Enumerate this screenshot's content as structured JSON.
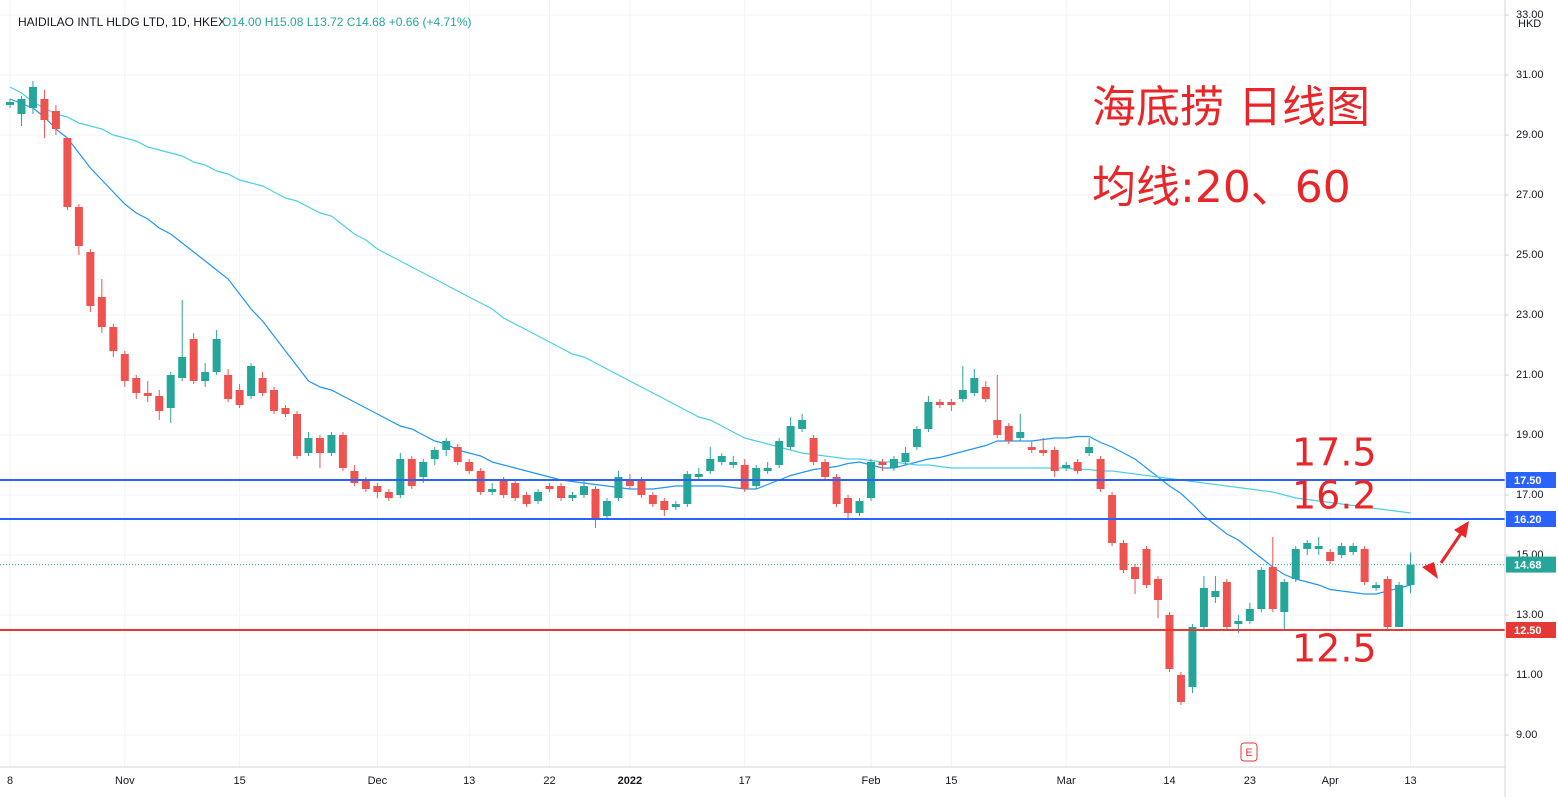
{
  "chart_data": {
    "type": "candlestick",
    "header": {
      "title": "HAIDILAO INTL HLDG LTD, 1D, HKEX",
      "ohlc": "O14.00 H15.08 L13.72 C14.68 +0.66 (+4.71%)"
    },
    "currency": "HKD",
    "annotations": {
      "title": "海底捞 日线图",
      "subtitle": "均线:20、60",
      "levels": [
        "17.5",
        "16.2",
        "12.5"
      ]
    },
    "earnings_marker": "E",
    "up_color": "#26a69a",
    "down_color": "#ef5350",
    "categories": [
      "8",
      null,
      null,
      null,
      null,
      null,
      null,
      null,
      null,
      null,
      "Nov",
      null,
      null,
      null,
      null,
      null,
      null,
      null,
      null,
      null,
      "15",
      null,
      null,
      null,
      null,
      null,
      null,
      null,
      null,
      null,
      null,
      null,
      "Dec",
      null,
      null,
      null,
      null,
      null,
      null,
      null,
      "13",
      null,
      null,
      null,
      null,
      null,
      null,
      "22",
      null,
      null,
      null,
      null,
      null,
      null,
      "2022",
      null,
      null,
      null,
      null,
      null,
      null,
      null,
      null,
      null,
      "17",
      null,
      null,
      null,
      null,
      null,
      null,
      null,
      null,
      null,
      null,
      "Feb",
      null,
      null,
      null,
      null,
      null,
      null,
      "15",
      null,
      null,
      null,
      null,
      null,
      null,
      null,
      null,
      null,
      "Mar",
      null,
      null,
      null,
      null,
      null,
      null,
      null,
      null,
      "14",
      null,
      null,
      null,
      null,
      null,
      null,
      "23",
      null,
      null,
      null,
      null,
      null,
      null,
      "Apr",
      null,
      null,
      null,
      null,
      null,
      null,
      "13"
    ],
    "open": [
      30.0,
      29.7,
      29.9,
      30.2,
      29.8,
      28.9,
      26.6,
      25.1,
      23.6,
      22.6,
      21.7,
      20.9,
      20.4,
      20.3,
      19.9,
      20.9,
      22.2,
      20.8,
      21.1,
      21.0,
      20.5,
      20.3,
      20.9,
      20.5,
      19.9,
      19.7,
      18.4,
      18.9,
      18.4,
      19.0,
      17.8,
      17.5,
      17.3,
      17.1,
      17.0,
      18.2,
      17.6,
      18.2,
      18.5,
      18.6,
      18.1,
      17.8,
      17.1,
      17.5,
      17.4,
      17.0,
      16.8,
      17.3,
      17.3,
      16.9,
      17.0,
      17.2,
      16.3,
      16.9,
      17.5,
      17.5,
      17.0,
      16.8,
      16.6,
      16.7,
      17.6,
      17.8,
      18.1,
      18.0,
      18.0,
      17.3,
      17.8,
      18.0,
      18.6,
      19.2,
      18.9,
      18.1,
      17.6,
      16.9,
      16.4,
      16.9,
      18.1,
      17.9,
      18.1,
      18.6,
      19.2,
      20.1,
      20.1,
      20.2,
      20.4,
      20.6,
      19.5,
      19.3,
      18.9,
      18.6,
      18.5,
      18.5,
      17.9,
      18.1,
      18.4,
      18.2,
      17.0,
      15.4,
      14.6,
      15.2,
      14.2,
      13.0,
      11.0,
      10.6,
      12.6,
      13.6,
      14.1,
      12.7,
      12.8,
      13.2,
      14.6,
      13.1,
      14.2,
      15.2,
      15.2,
      15.1,
      15.0,
      15.1,
      15.2,
      13.9,
      14.2,
      12.6,
      14.0
    ],
    "high": [
      30.2,
      30.3,
      30.8,
      30.5,
      30.0,
      28.9,
      26.7,
      25.2,
      24.2,
      22.7,
      21.8,
      21.0,
      20.8,
      20.5,
      21.1,
      23.5,
      22.4,
      21.4,
      22.5,
      21.2,
      20.7,
      21.4,
      21.1,
      20.6,
      20.0,
      19.8,
      19.1,
      19.0,
      19.1,
      19.1,
      18.0,
      17.6,
      17.4,
      17.2,
      18.4,
      18.3,
      18.2,
      18.6,
      18.9,
      18.7,
      18.2,
      17.9,
      17.4,
      17.6,
      17.5,
      17.1,
      17.2,
      17.4,
      17.4,
      17.1,
      17.5,
      17.3,
      16.9,
      17.8,
      17.7,
      17.6,
      17.1,
      16.9,
      16.8,
      17.8,
      17.9,
      18.6,
      18.4,
      18.3,
      18.2,
      18.0,
      18.1,
      18.9,
      19.6,
      19.7,
      19.0,
      18.2,
      17.7,
      17.0,
      16.9,
      18.2,
      18.2,
      18.3,
      18.6,
      19.3,
      20.3,
      20.2,
      20.2,
      21.3,
      21.2,
      20.8,
      21.0,
      19.4,
      19.7,
      18.8,
      18.9,
      18.6,
      18.1,
      18.2,
      18.9,
      18.3,
      17.1,
      15.5,
      14.7,
      15.3,
      14.3,
      13.1,
      11.1,
      12.7,
      14.3,
      14.3,
      14.2,
      13.0,
      13.4,
      14.6,
      15.6,
      14.2,
      15.3,
      15.5,
      15.6,
      15.2,
      15.4,
      15.4,
      15.3,
      14.1,
      14.3,
      14.1,
      15.08
    ],
    "low": [
      29.9,
      29.3,
      29.7,
      28.9,
      29.0,
      26.5,
      25.0,
      23.1,
      22.4,
      21.6,
      20.6,
      20.2,
      20.1,
      19.5,
      19.4,
      20.8,
      20.7,
      20.6,
      21.0,
      20.1,
      19.9,
      20.2,
      20.3,
      19.7,
      19.6,
      18.2,
      18.3,
      17.9,
      18.3,
      17.8,
      17.3,
      17.1,
      16.9,
      16.8,
      16.9,
      17.2,
      17.4,
      18.0,
      18.3,
      18.0,
      17.7,
      17.0,
      17.0,
      16.9,
      16.8,
      16.6,
      16.7,
      17.1,
      16.8,
      16.8,
      16.9,
      15.9,
      16.2,
      16.8,
      17.2,
      16.9,
      16.6,
      16.3,
      16.5,
      16.6,
      17.5,
      17.7,
      18.0,
      17.9,
      17.1,
      17.2,
      17.7,
      17.9,
      18.5,
      19.1,
      18.0,
      17.5,
      16.6,
      16.2,
      16.3,
      16.8,
      17.8,
      17.8,
      18.0,
      18.5,
      19.1,
      19.9,
      19.8,
      20.1,
      20.3,
      20.1,
      18.9,
      18.7,
      18.8,
      18.4,
      18.3,
      17.6,
      17.8,
      17.7,
      18.3,
      17.1,
      15.3,
      14.4,
      13.7,
      13.9,
      12.9,
      11.1,
      10.0,
      10.4,
      12.5,
      13.4,
      12.5,
      12.4,
      12.7,
      13.1,
      13.1,
      12.5,
      14.1,
      15.0,
      15.0,
      14.7,
      14.9,
      15.0,
      14.0,
      13.8,
      12.5,
      12.6,
      13.72
    ],
    "close": [
      30.1,
      30.2,
      30.6,
      29.5,
      29.2,
      26.6,
      25.3,
      23.3,
      22.6,
      21.8,
      20.8,
      20.4,
      20.3,
      19.8,
      21.0,
      21.6,
      20.8,
      21.1,
      22.2,
      20.2,
      20.0,
      21.3,
      20.4,
      19.8,
      19.7,
      18.3,
      18.9,
      18.4,
      19.0,
      17.9,
      17.4,
      17.2,
      17.1,
      16.9,
      18.2,
      17.3,
      18.1,
      18.5,
      18.8,
      18.1,
      17.8,
      17.1,
      17.2,
      17.0,
      16.9,
      16.7,
      17.1,
      17.2,
      16.9,
      17.0,
      17.3,
      16.2,
      16.8,
      17.6,
      17.3,
      17.0,
      16.7,
      16.5,
      16.7,
      17.7,
      17.7,
      18.2,
      18.3,
      18.1,
      17.2,
      17.9,
      17.9,
      18.8,
      19.3,
      19.5,
      18.1,
      17.6,
      16.7,
      16.4,
      16.8,
      18.1,
      18.0,
      18.2,
      18.4,
      19.2,
      20.1,
      20.0,
      20.0,
      20.5,
      20.9,
      20.2,
      19.0,
      18.8,
      19.1,
      18.5,
      18.4,
      17.8,
      18.0,
      17.8,
      18.6,
      17.2,
      15.4,
      14.5,
      14.2,
      14.0,
      13.5,
      11.2,
      10.1,
      12.6,
      13.9,
      13.8,
      12.6,
      12.8,
      13.2,
      14.5,
      13.2,
      14.1,
      15.2,
      15.4,
      15.3,
      14.8,
      15.3,
      15.3,
      14.1,
      14.0,
      12.6,
      14.0,
      14.68
    ],
    "series": [
      {
        "color": "#2196f3",
        "values": [
          30.2,
          30.05,
          29.9,
          29.6,
          29.2,
          28.9,
          28.4,
          27.9,
          27.5,
          27.1,
          26.7,
          26.4,
          26.2,
          25.9,
          25.7,
          25.4,
          25.1,
          24.8,
          24.5,
          24.2,
          23.7,
          23.2,
          22.8,
          22.3,
          21.8,
          21.3,
          20.8,
          20.6,
          20.5,
          20.3,
          20.1,
          19.9,
          19.7,
          19.5,
          19.3,
          19.2,
          19.0,
          18.8,
          18.7,
          18.5,
          18.4,
          18.3,
          18.1,
          18.0,
          17.9,
          17.8,
          17.7,
          17.6,
          17.5,
          17.45,
          17.4,
          17.35,
          17.3,
          17.25,
          17.2,
          17.2,
          17.2,
          17.25,
          17.3,
          17.3,
          17.3,
          17.3,
          17.3,
          17.25,
          17.2,
          17.2,
          17.35,
          17.5,
          17.65,
          17.75,
          17.85,
          17.9,
          17.95,
          18.05,
          18.1,
          18.0,
          17.9,
          17.9,
          18.0,
          18.1,
          18.2,
          18.25,
          18.35,
          18.45,
          18.55,
          18.65,
          18.8,
          18.8,
          18.8,
          18.8,
          18.85,
          18.9,
          18.9,
          18.95,
          18.95,
          18.75,
          18.6,
          18.4,
          18.2,
          17.9,
          17.6,
          17.3,
          17.05,
          16.7,
          16.3,
          16.0,
          15.7,
          15.5,
          15.2,
          14.9,
          14.6,
          14.35,
          14.2,
          14.1,
          14.0,
          13.85,
          13.8,
          13.75,
          13.7,
          13.7,
          13.8,
          13.9,
          14.0
        ]
      },
      {
        "color": "#4dd0e1",
        "values": [
          30.6,
          30.4,
          30.1,
          29.9,
          29.7,
          29.6,
          29.4,
          29.3,
          29.2,
          29.0,
          28.9,
          28.8,
          28.6,
          28.5,
          28.4,
          28.3,
          28.1,
          28.0,
          27.8,
          27.7,
          27.5,
          27.4,
          27.3,
          27.1,
          26.9,
          26.8,
          26.6,
          26.4,
          26.3,
          26.0,
          25.7,
          25.5,
          25.2,
          25.0,
          24.8,
          24.6,
          24.4,
          24.2,
          24.0,
          23.8,
          23.6,
          23.4,
          23.2,
          22.9,
          22.7,
          22.5,
          22.3,
          22.1,
          21.9,
          21.7,
          21.6,
          21.4,
          21.2,
          21.0,
          20.8,
          20.6,
          20.4,
          20.2,
          20.0,
          19.8,
          19.6,
          19.5,
          19.3,
          19.1,
          18.9,
          18.8,
          18.7,
          18.6,
          18.5,
          18.4,
          18.35,
          18.3,
          18.25,
          18.2,
          18.2,
          18.15,
          18.1,
          18.1,
          18.05,
          18.0,
          18.0,
          17.95,
          17.9,
          17.9,
          17.9,
          17.9,
          17.9,
          17.9,
          17.9,
          17.9,
          17.9,
          17.9,
          17.9,
          17.85,
          17.85,
          17.8,
          17.8,
          17.75,
          17.7,
          17.65,
          17.6,
          17.55,
          17.5,
          17.45,
          17.4,
          17.35,
          17.3,
          17.25,
          17.2,
          17.15,
          17.1,
          17.0,
          16.9,
          16.85,
          16.8,
          16.75,
          16.7,
          16.65,
          16.6,
          16.55,
          16.5,
          16.45,
          16.4
        ]
      }
    ],
    "hlines": [
      {
        "value": 17.5,
        "label": "17.50",
        "color": "#2962ff"
      },
      {
        "value": 16.2,
        "label": "16.20",
        "color": "#2962ff"
      },
      {
        "value": 12.5,
        "label": "12.50",
        "color": "#e53935"
      }
    ],
    "last_price": {
      "value": 14.68,
      "label": "14.68",
      "color": "#26a69a"
    },
    "ylim": [
      8.0,
      33.0
    ],
    "yticks": [
      {
        "value": 9,
        "label": "9.00"
      },
      {
        "value": 11,
        "label": "11.00"
      },
      {
        "value": 13,
        "label": "13.00"
      },
      {
        "value": 15,
        "label": "15.00"
      },
      {
        "value": 17,
        "label": "17.00"
      },
      {
        "value": 19,
        "label": "19.00"
      },
      {
        "value": 21,
        "label": "21.00"
      },
      {
        "value": 23,
        "label": "23.00"
      },
      {
        "value": 25,
        "label": "25.00"
      },
      {
        "value": 27,
        "label": "27.00"
      },
      {
        "value": 29,
        "label": "29.00"
      },
      {
        "value": 31,
        "label": "31.00"
      },
      {
        "value": 33,
        "label": "33.00"
      }
    ],
    "grid": true
  }
}
